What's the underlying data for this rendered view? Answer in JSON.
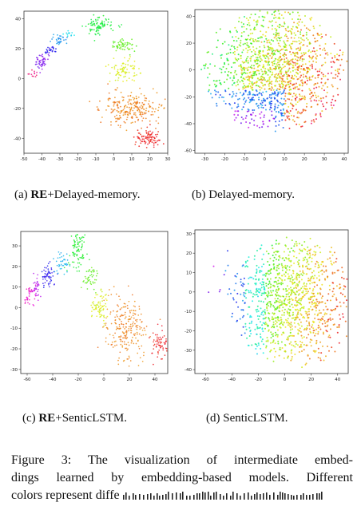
{
  "panels": [
    {
      "id": "a",
      "label_prefix": "(a) ",
      "label_bold": "RE",
      "label_rest": "+Delayed-memory.",
      "xticks": [
        "-50",
        "-40",
        "-30",
        "-20",
        "-10",
        "0",
        "10",
        "20",
        "30"
      ],
      "yticks": [
        "40",
        "20",
        "0",
        "-20",
        "-40"
      ],
      "xlim": [
        -50,
        30
      ],
      "ylim": [
        -50,
        45
      ]
    },
    {
      "id": "b",
      "label_prefix": "(b) ",
      "label_bold": "",
      "label_rest": "Delayed-memory.",
      "xticks": [
        "-30",
        "-20",
        "-10",
        "0",
        "10",
        "20",
        "30",
        "40"
      ],
      "yticks": [
        "40",
        "20",
        "0",
        "-20",
        "-40",
        "-60"
      ],
      "xlim": [
        -35,
        42
      ],
      "ylim": [
        -62,
        45
      ]
    },
    {
      "id": "c",
      "label_prefix": "(c) ",
      "label_bold": "RE",
      "label_rest": "+SenticLSTM.",
      "xticks": [
        "-60",
        "-40",
        "-20",
        "0",
        "20",
        "40"
      ],
      "yticks": [
        "30",
        "20",
        "10",
        "0",
        "-10",
        "-20",
        "-30"
      ],
      "xlim": [
        -65,
        50
      ],
      "ylim": [
        -32,
        37
      ]
    },
    {
      "id": "d",
      "label_prefix": "(d) ",
      "label_bold": "",
      "label_rest": "SenticLSTM.",
      "xticks": [
        "-60",
        "-40",
        "-20",
        "0",
        "20",
        "40"
      ],
      "yticks": [
        "30",
        "20",
        "10",
        "0",
        "-10",
        "-20",
        "-30",
        "-40"
      ],
      "xlim": [
        -68,
        48
      ],
      "ylim": [
        -42,
        32
      ]
    }
  ],
  "caption": {
    "line1": "Figure 3:  The visualization of intermediate embed-",
    "line2": "dings learned by embedding-based models.  Different",
    "line3": "colors represent diffe"
  }
}
